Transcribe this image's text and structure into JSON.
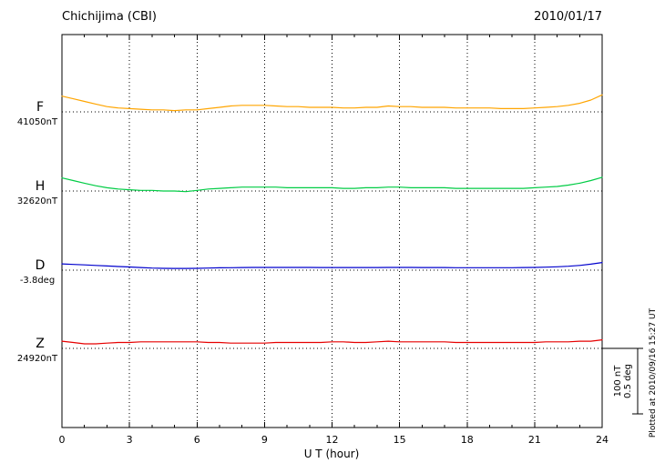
{
  "header": {
    "title": "Chichijima (CBI)",
    "date": "2010/01/17"
  },
  "x_axis": {
    "label": "U T (hour)",
    "ticks": [
      0,
      3,
      6,
      9,
      12,
      15,
      18,
      21,
      24
    ],
    "min": 0,
    "max": 24
  },
  "scale_bar": {
    "nt_label": "100 nT",
    "deg_label": "0.5 deg"
  },
  "footer": {
    "plotted_at": "Plotted at 2010/09/16 15:27 UT"
  },
  "chart_data": {
    "type": "line",
    "title": "Chichijima (CBI)",
    "date": "2010/01/17",
    "xlabel": "U T (hour)",
    "x_range": [
      0,
      24
    ],
    "grid": "dotted vertical lines every 3 hours; dotted horizontal baseline per component",
    "scale": {
      "nT": 100,
      "deg": 0.5
    },
    "x": [
      0,
      0.5,
      1,
      1.5,
      2,
      2.5,
      3,
      3.5,
      4,
      4.5,
      5,
      5.5,
      6,
      6.5,
      7,
      7.5,
      8,
      8.5,
      9,
      9.5,
      10,
      10.5,
      11,
      11.5,
      12,
      12.5,
      13,
      13.5,
      14,
      14.5,
      15,
      15.5,
      16,
      16.5,
      17,
      17.5,
      18,
      18.5,
      19,
      19.5,
      20,
      20.5,
      21,
      21.5,
      22,
      22.5,
      23,
      23.5,
      24
    ],
    "series": [
      {
        "name": "F",
        "label": "F",
        "units": "nT",
        "color": "#ffa500",
        "baseline_value": 41050,
        "baseline_label": "41050nT",
        "values": [
          41074,
          41070,
          41066,
          41062,
          41058,
          41056,
          41055,
          41054,
          41053,
          41053,
          41052,
          41053,
          41053,
          41055,
          41057,
          41059,
          41060,
          41060,
          41060,
          41059,
          41058,
          41058,
          41057,
          41057,
          41057,
          41056,
          41056,
          41057,
          41057,
          41059,
          41058,
          41058,
          41057,
          41057,
          41057,
          41056,
          41056,
          41056,
          41056,
          41055,
          41055,
          41055,
          41056,
          41057,
          41058,
          41060,
          41063,
          41068,
          41076
        ]
      },
      {
        "name": "H",
        "label": "H",
        "units": "nT",
        "color": "#00cc44",
        "baseline_value": 32620,
        "baseline_label": "32620nT",
        "values": [
          32640,
          32636,
          32632,
          32628,
          32625,
          32623,
          32622,
          32621,
          32621,
          32620,
          32620,
          32619,
          32621,
          32623,
          32624,
          32625,
          32626,
          32626,
          32626,
          32626,
          32625,
          32625,
          32625,
          32625,
          32625,
          32624,
          32624,
          32625,
          32625,
          32626,
          32626,
          32625,
          32625,
          32625,
          32625,
          32624,
          32624,
          32624,
          32624,
          32624,
          32624,
          32624,
          32625,
          32626,
          32627,
          32629,
          32632,
          32636,
          32641
        ]
      },
      {
        "name": "D",
        "label": "D",
        "units": "deg",
        "color": "#0000cd",
        "baseline_value": -3.8,
        "baseline_label": "-3.8deg",
        "values": [
          -3.752,
          -3.756,
          -3.76,
          -3.764,
          -3.768,
          -3.772,
          -3.776,
          -3.78,
          -3.784,
          -3.786,
          -3.787,
          -3.787,
          -3.786,
          -3.784,
          -3.782,
          -3.781,
          -3.78,
          -3.779,
          -3.779,
          -3.779,
          -3.779,
          -3.779,
          -3.779,
          -3.78,
          -3.78,
          -3.78,
          -3.78,
          -3.78,
          -3.78,
          -3.779,
          -3.779,
          -3.779,
          -3.78,
          -3.78,
          -3.78,
          -3.781,
          -3.781,
          -3.781,
          -3.781,
          -3.781,
          -3.781,
          -3.78,
          -3.779,
          -3.777,
          -3.774,
          -3.77,
          -3.764,
          -3.754,
          -3.742
        ]
      },
      {
        "name": "Z",
        "label": "Z",
        "units": "nT",
        "color": "#e60000",
        "baseline_value": 24920,
        "baseline_label": "24920nT",
        "values": [
          24931,
          24929,
          24927,
          24927,
          24928,
          24929,
          24929,
          24930,
          24930,
          24930,
          24930,
          24930,
          24930,
          24929,
          24929,
          24928,
          24928,
          24928,
          24928,
          24929,
          24929,
          24929,
          24929,
          24929,
          24930,
          24930,
          24929,
          24929,
          24930,
          24931,
          24930,
          24930,
          24930,
          24930,
          24930,
          24929,
          24929,
          24929,
          24929,
          24929,
          24929,
          24929,
          24929,
          24930,
          24930,
          24930,
          24931,
          24931,
          24933
        ]
      }
    ]
  }
}
